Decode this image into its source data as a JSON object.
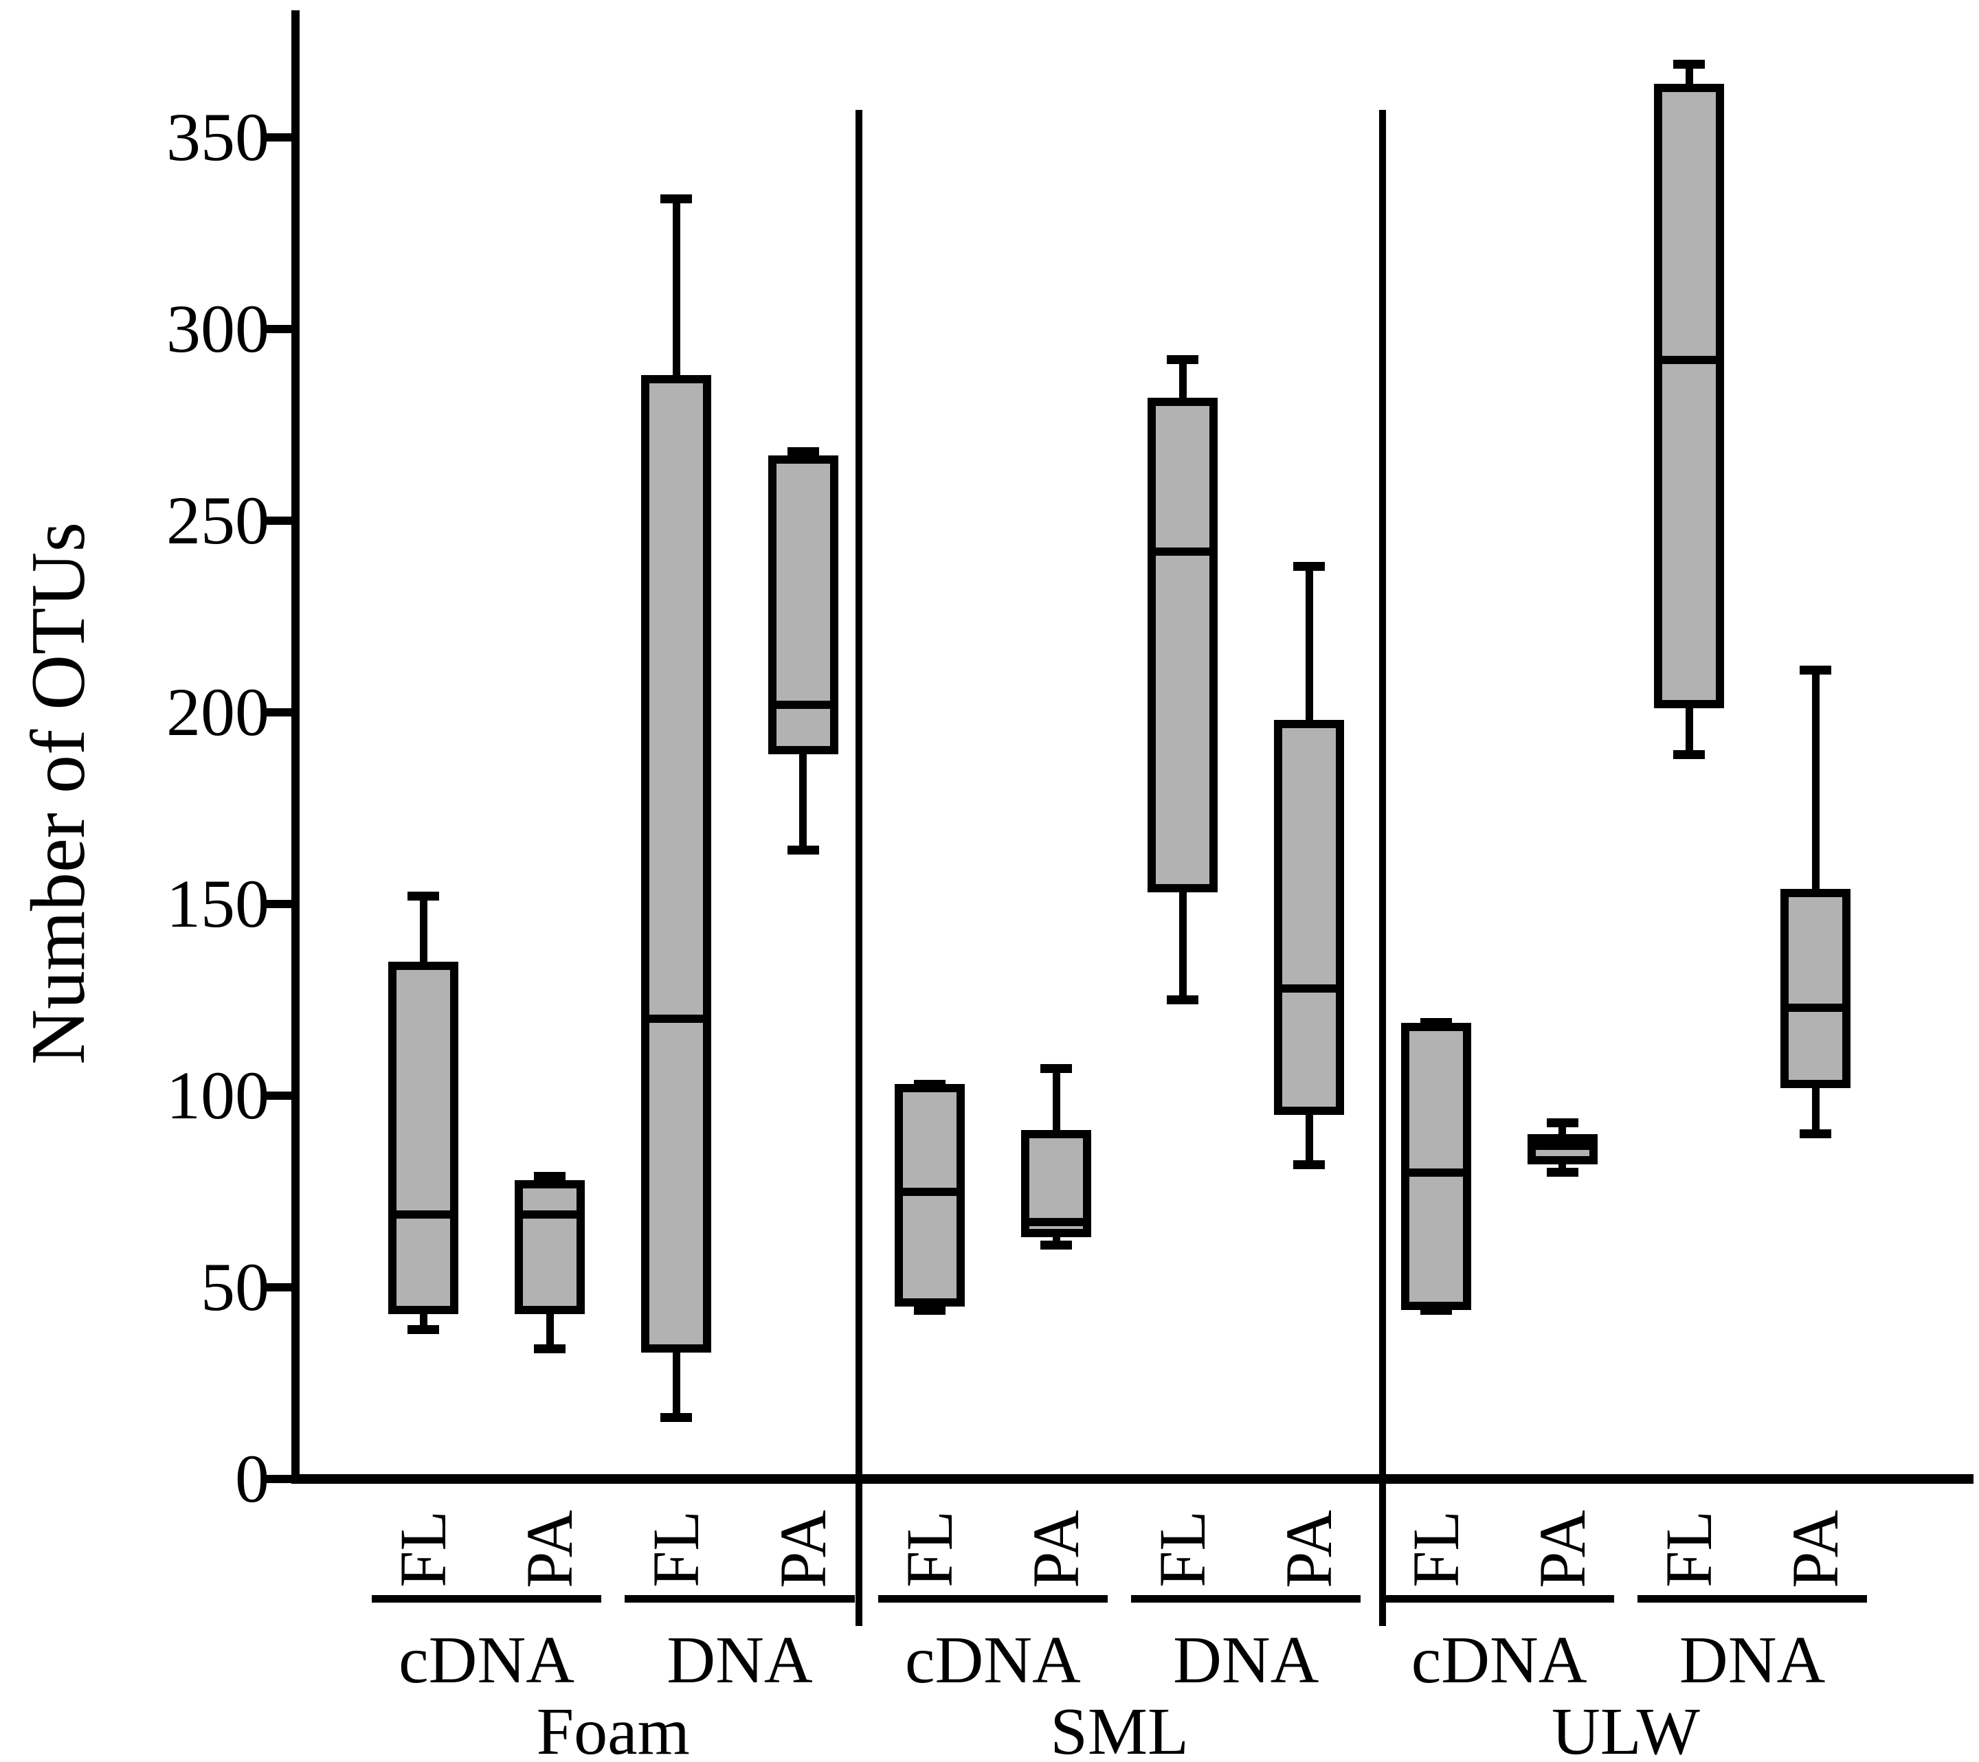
{
  "chart_data": {
    "type": "boxplot",
    "title": "",
    "ylabel": "Number of OTUs",
    "xlabel": "",
    "ylim": [
      0,
      383
    ],
    "yticks": [
      0,
      50,
      100,
      150,
      200,
      250,
      300,
      350
    ],
    "grid": false,
    "legend": "none",
    "box_fill_color": "#b2b2b2",
    "line_color": "#000000",
    "groups": [
      {
        "name": "Foam",
        "subgroups": [
          {
            "name": "cDNA",
            "boxes": [
              {
                "label": "FL",
                "whisker_low": 39,
                "q1": 43,
                "median": 69,
                "q3": 135,
                "whisker_high": 152
              },
              {
                "label": "PA",
                "whisker_low": 34,
                "q1": 43,
                "median": 69,
                "q3": 78,
                "whisker_high": 79
              }
            ]
          },
          {
            "name": "DNA",
            "boxes": [
              {
                "label": "FL",
                "whisker_low": 16,
                "q1": 33,
                "median": 120,
                "q3": 288,
                "whisker_high": 334
              },
              {
                "label": "PA",
                "whisker_low": 164,
                "q1": 189,
                "median": 202,
                "q3": 267,
                "whisker_high": 268
              }
            ]
          }
        ]
      },
      {
        "name": "SML",
        "subgroups": [
          {
            "name": "cDNA",
            "boxes": [
              {
                "label": "FL",
                "whisker_low": 44,
                "q1": 45,
                "median": 75,
                "q3": 103,
                "whisker_high": 103
              },
              {
                "label": "PA",
                "whisker_low": 61,
                "q1": 63,
                "median": 67,
                "q3": 91,
                "whisker_high": 107
              }
            ]
          },
          {
            "name": "DNA",
            "boxes": [
              {
                "label": "FL",
                "whisker_low": 125,
                "q1": 153,
                "median": 242,
                "q3": 282,
                "whisker_high": 292
              },
              {
                "label": "PA",
                "whisker_low": 82,
                "q1": 95,
                "median": 128,
                "q3": 198,
                "whisker_high": 238
              }
            ]
          }
        ]
      },
      {
        "name": "ULW",
        "subgroups": [
          {
            "name": "cDNA",
            "boxes": [
              {
                "label": "FL",
                "whisker_low": 44,
                "q1": 44,
                "median": 80,
                "q3": 119,
                "whisker_high": 119
              },
              {
                "label": "PA",
                "whisker_low": 80,
                "q1": 82,
                "median": 87,
                "q3": 90,
                "whisker_high": 93
              }
            ]
          },
          {
            "name": "DNA",
            "boxes": [
              {
                "label": "FL",
                "whisker_low": 189,
                "q1": 201,
                "median": 292,
                "q3": 364,
                "whisker_high": 369
              },
              {
                "label": "PA",
                "whisker_low": 90,
                "q1": 102,
                "median": 123,
                "q3": 154,
                "whisker_high": 211
              }
            ]
          }
        ]
      }
    ]
  }
}
